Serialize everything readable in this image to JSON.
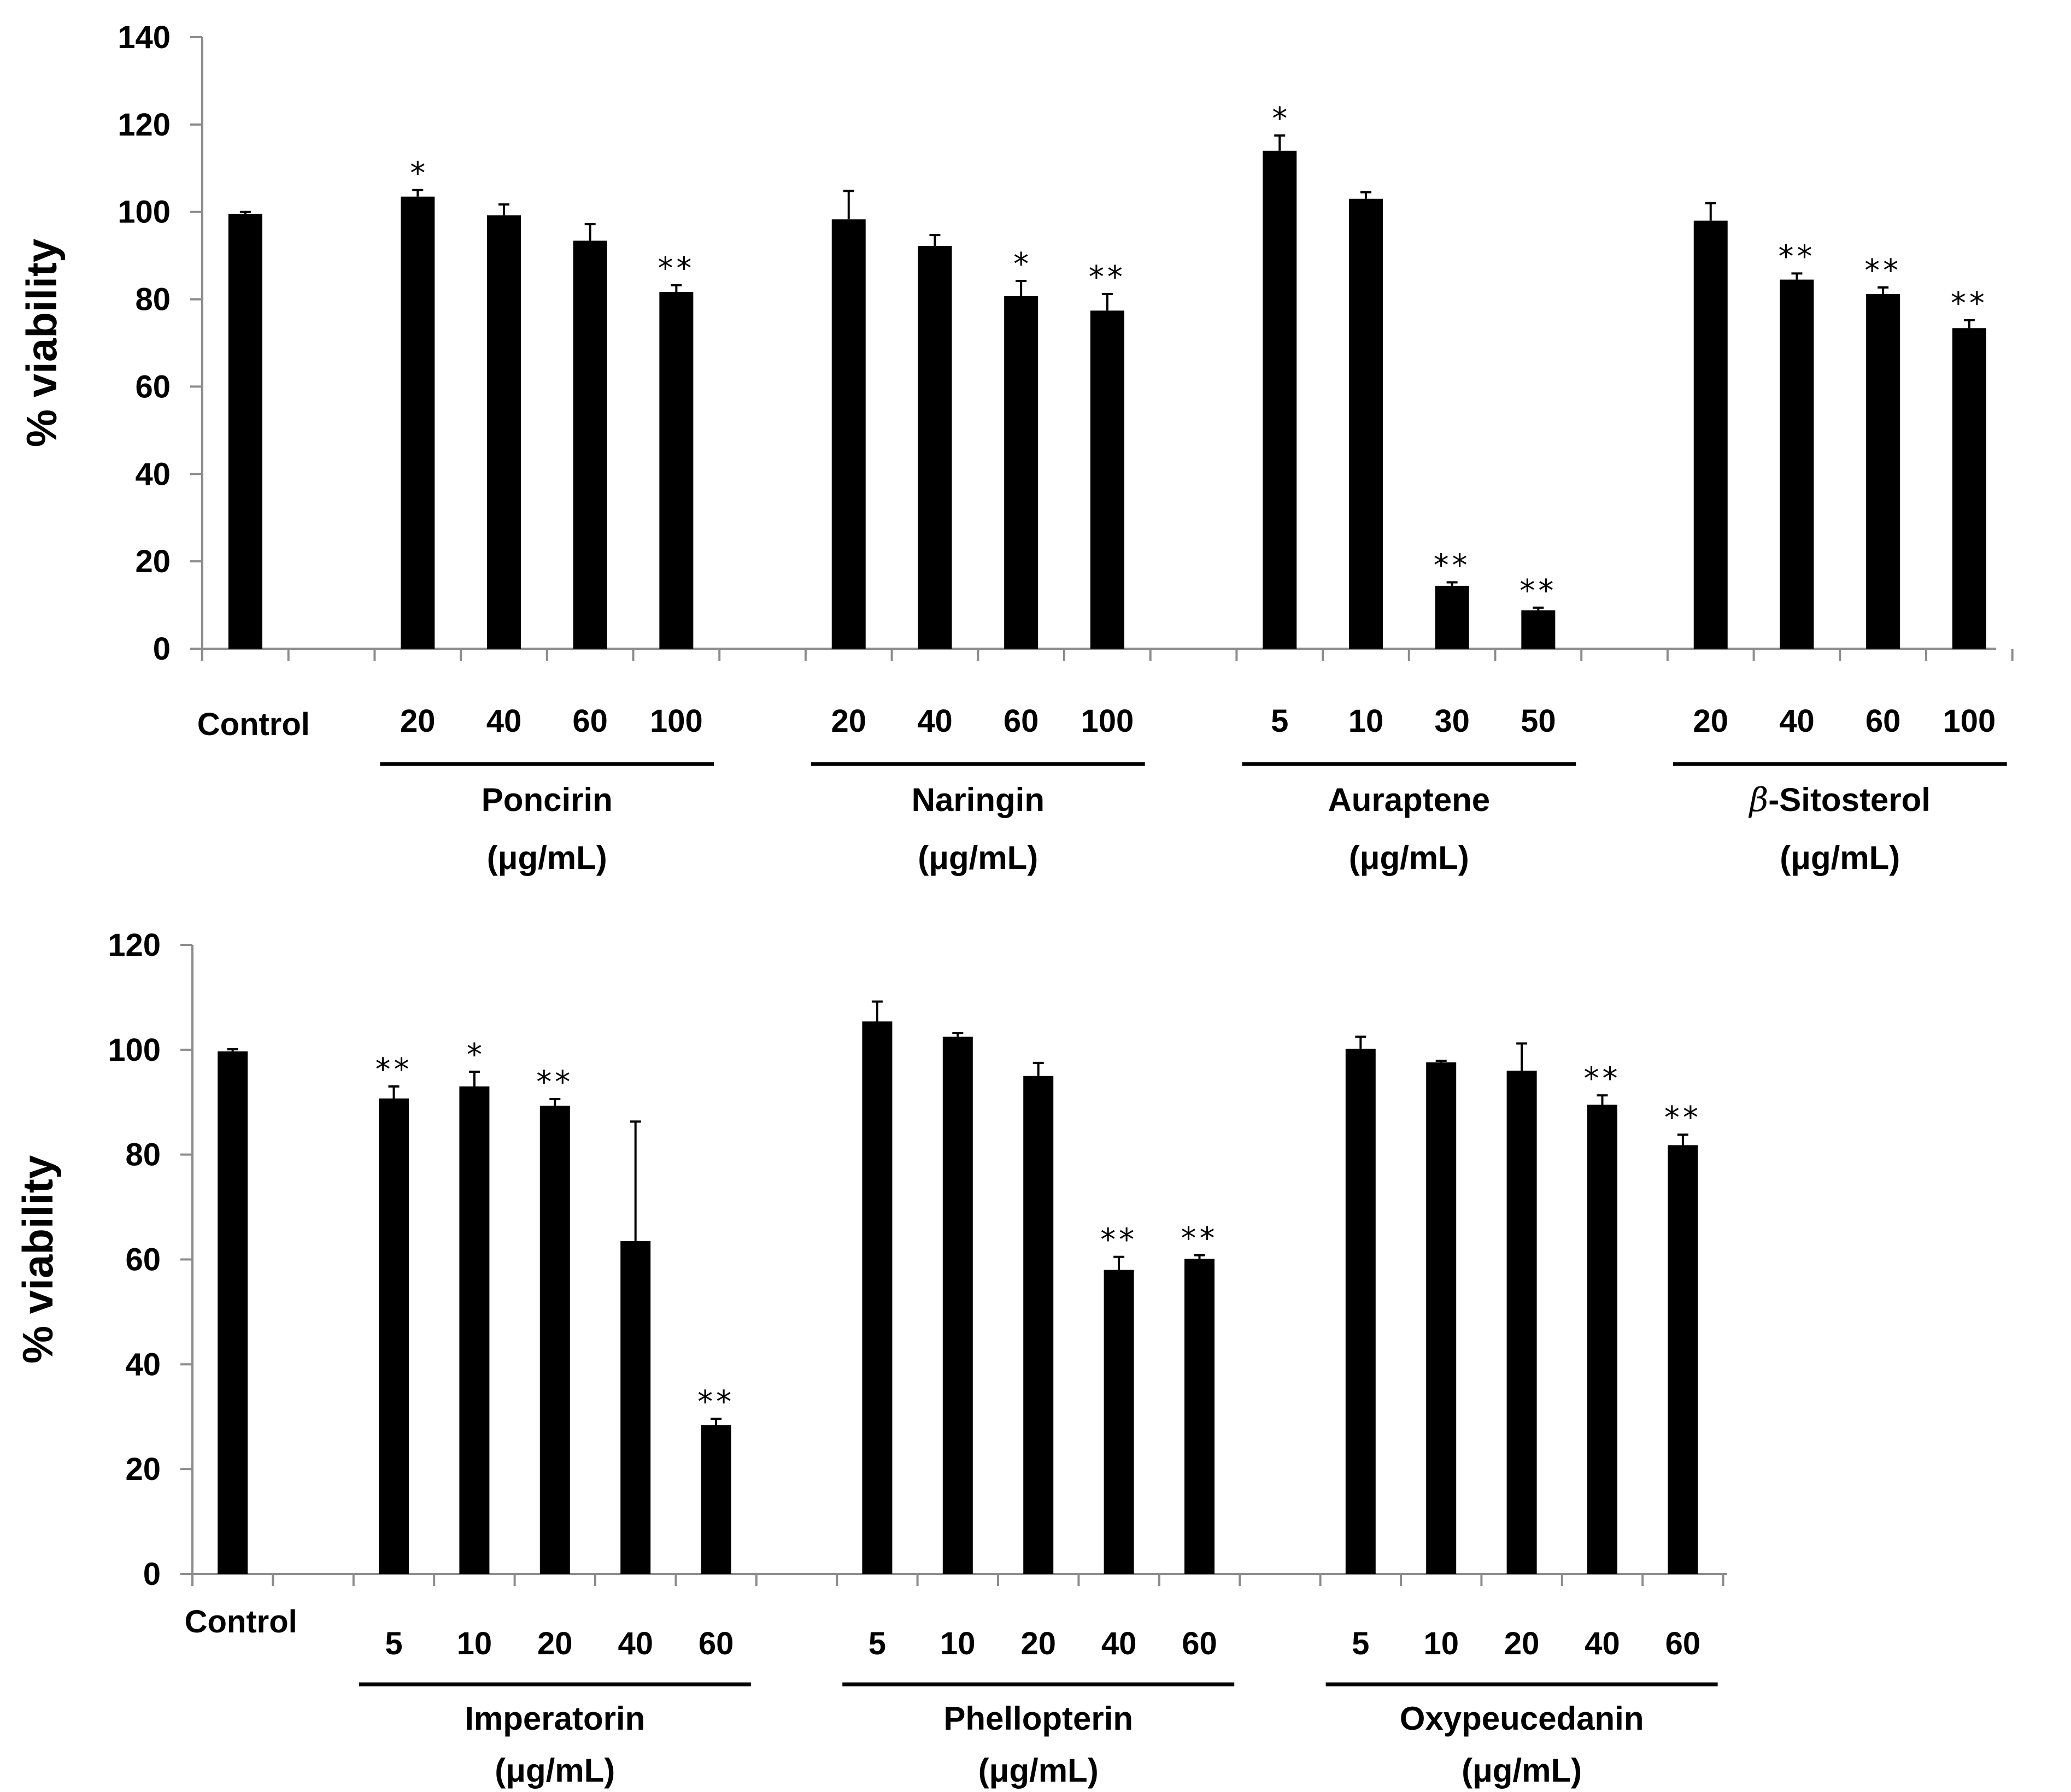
{
  "chart_data": [
    {
      "type": "bar",
      "ylabel": "% viability",
      "ylim": [
        0,
        140
      ],
      "yticks": [
        "0",
        "20",
        "40",
        "60",
        "80",
        "100",
        "120",
        "140"
      ],
      "control": {
        "label": "Control",
        "value": 99.5,
        "error": 0.5,
        "sig": ""
      },
      "unit_label": "(μg/mL)",
      "groups": [
        {
          "name": "Poncirin",
          "name_prefix": "",
          "categories": [
            "20",
            "40",
            "60",
            "100"
          ],
          "values": [
            103.5,
            99.2,
            93.4,
            81.7
          ],
          "errors": [
            1.5,
            2.5,
            3.8,
            1.5
          ],
          "sig": [
            "*",
            "",
            "",
            "**"
          ]
        },
        {
          "name": "Naringin",
          "name_prefix": "",
          "categories": [
            "20",
            "40",
            "60",
            "100"
          ],
          "values": [
            98.3,
            92.2,
            80.7,
            77.4
          ],
          "errors": [
            6.5,
            2.5,
            3.5,
            3.8
          ],
          "sig": [
            "",
            "",
            "*",
            "**"
          ]
        },
        {
          "name": "Auraptene",
          "name_prefix": "",
          "categories": [
            "5",
            "10",
            "30",
            "50"
          ],
          "values": [
            114.0,
            103.0,
            14.4,
            8.8
          ],
          "errors": [
            3.5,
            1.5,
            0.8,
            0.6
          ],
          "sig": [
            "*",
            "",
            "**",
            "**"
          ]
        },
        {
          "name": "-Sitosterol",
          "name_prefix": "β",
          "categories": [
            "20",
            "40",
            "60",
            "100"
          ],
          "values": [
            98.0,
            84.5,
            81.2,
            73.4
          ],
          "errors": [
            4.0,
            1.4,
            1.5,
            1.8
          ],
          "sig": [
            "",
            "**",
            "**",
            "**"
          ]
        }
      ]
    },
    {
      "type": "bar",
      "ylabel": "% viability",
      "ylim": [
        0,
        120
      ],
      "yticks": [
        "0",
        "20",
        "40",
        "60",
        "80",
        "100",
        "120"
      ],
      "control": {
        "label": "Control",
        "value": 99.7,
        "error": 0.4,
        "sig": ""
      },
      "unit_label": "(μg/mL)",
      "groups": [
        {
          "name": "Imperatorin",
          "name_prefix": "",
          "categories": [
            "5",
            "10",
            "20",
            "40",
            "60"
          ],
          "values": [
            90.7,
            93.0,
            89.3,
            63.5,
            28.4
          ],
          "errors": [
            2.3,
            2.8,
            1.3,
            22.8,
            1.2
          ],
          "sig": [
            "**",
            "*",
            "**",
            "",
            "**"
          ]
        },
        {
          "name": "Phellopterin",
          "name_prefix": "",
          "categories": [
            "5",
            "10",
            "20",
            "40",
            "60"
          ],
          "values": [
            105.4,
            102.5,
            95.0,
            58.0,
            60.1
          ],
          "errors": [
            3.8,
            0.7,
            2.5,
            2.5,
            0.7
          ],
          "sig": [
            "",
            "",
            "",
            "**",
            "**"
          ]
        },
        {
          "name": "Oxypeucedanin",
          "name_prefix": "",
          "categories": [
            "5",
            "10",
            "20",
            "40",
            "60"
          ],
          "values": [
            100.2,
            97.6,
            96.0,
            89.5,
            81.8
          ],
          "errors": [
            2.3,
            0.3,
            5.2,
            1.8,
            2.0
          ],
          "sig": [
            "",
            "",
            "",
            "**",
            "**"
          ]
        }
      ]
    }
  ]
}
